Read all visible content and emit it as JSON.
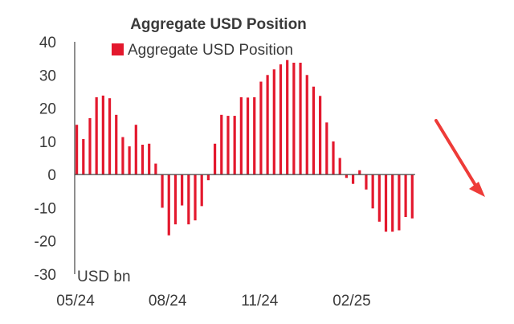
{
  "chart_data": {
    "type": "bar",
    "title": "Aggregate USD Position",
    "legend": "Aggregate USD Position",
    "unit_label": "USD bn",
    "ylim": [
      -30,
      40
    ],
    "y_ticks": [
      40,
      30,
      20,
      10,
      0,
      -10,
      -20,
      -30
    ],
    "x_tick_labels": [
      "05/24",
      "08/24",
      "11/24",
      "02/25"
    ],
    "x_tick_bar_index": [
      0,
      14,
      28,
      42
    ],
    "values": [
      15,
      10.7,
      17,
      23.3,
      23.8,
      23,
      18,
      11.3,
      8.5,
      15,
      9,
      9.3,
      3.3,
      -10,
      -18.3,
      -15,
      -9.3,
      -15,
      -13.8,
      -9.5,
      -1.7,
      9.3,
      18,
      17.7,
      17.7,
      23.3,
      23.2,
      23.3,
      28,
      30,
      31.7,
      33.2,
      34.5,
      33.7,
      33.7,
      30,
      26.5,
      23.7,
      15.7,
      10,
      5,
      -1,
      -2.8,
      1.3,
      -4.5,
      -10.2,
      -14.2,
      -17.2,
      -17.2,
      -16.8,
      -12.8,
      -13.2
    ],
    "colors": {
      "bar": "#e3182d",
      "axis": "#444444",
      "text": "#3a3a3a",
      "arrow": "#ee3b38"
    }
  },
  "annotation": {
    "type": "arrow",
    "icon": "arrow-down-right-icon"
  }
}
